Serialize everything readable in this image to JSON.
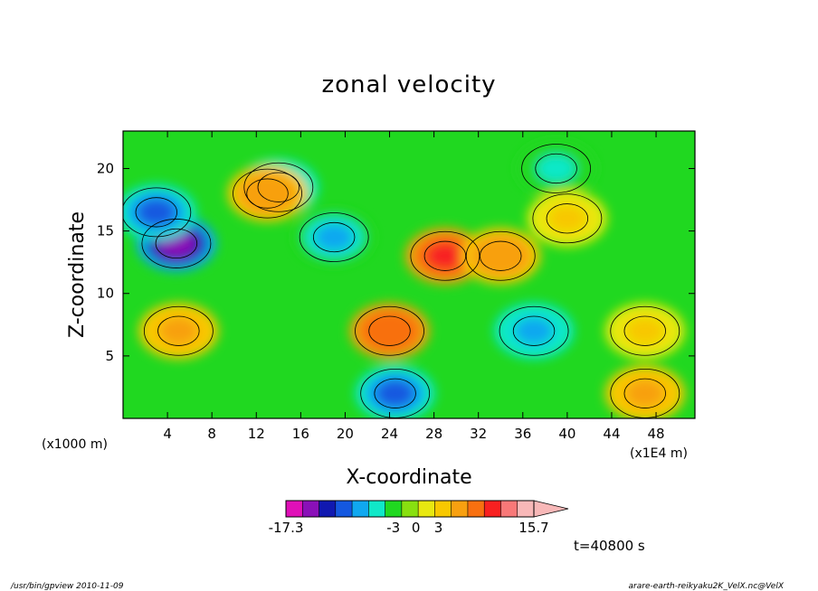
{
  "chart_data": {
    "type": "heatmap",
    "title": "zonal velocity",
    "xlabel": "X-coordinate",
    "ylabel": "Z-coordinate",
    "x_unit_left": "(x1000 m)",
    "x_unit_right": "(x1E4 m)",
    "xlim": [
      0,
      51.5
    ],
    "ylim": [
      0,
      23
    ],
    "x_ticks": [
      "4",
      "8",
      "12",
      "16",
      "20",
      "24",
      "28",
      "32",
      "36",
      "40",
      "44",
      "48"
    ],
    "y_ticks": [
      "5",
      "10",
      "15",
      "20"
    ],
    "colorbar": {
      "tick_labels": [
        "-17.3",
        "-3",
        "0",
        "3",
        "15.7"
      ],
      "tick_values": [
        -17.3,
        -3,
        0,
        3,
        15.7
      ],
      "range": [
        -17.3,
        15.7
      ],
      "colors": [
        "#e010b8",
        "#8a10b8",
        "#1018b0",
        "#1458e0",
        "#10a8f0",
        "#10e8c8",
        "#20d820",
        "#88e010",
        "#e8e810",
        "#f8c800",
        "#f8a010",
        "#f87010",
        "#f82020",
        "#f87878",
        "#f8b8b8"
      ]
    },
    "features": [
      {
        "x": 4.8,
        "z": 14.0,
        "value": -14
      },
      {
        "x": 3.0,
        "z": 16.5,
        "value": -9
      },
      {
        "x": 14.0,
        "z": 18.5,
        "value": -8
      },
      {
        "x": 19.0,
        "z": 14.5,
        "value": -7
      },
      {
        "x": 24.5,
        "z": 2.0,
        "value": -9
      },
      {
        "x": 37.0,
        "z": 7.0,
        "value": -8
      },
      {
        "x": 39.0,
        "z": 20.0,
        "value": -5
      },
      {
        "x": 24.0,
        "z": 7.0,
        "value": 9
      },
      {
        "x": 29.0,
        "z": 13.0,
        "value": 11
      },
      {
        "x": 34.0,
        "z": 13.0,
        "value": 6
      },
      {
        "x": 5.0,
        "z": 7.0,
        "value": 5
      },
      {
        "x": 13.0,
        "z": 18.0,
        "value": 6
      },
      {
        "x": 47.0,
        "z": 7.0,
        "value": 3
      },
      {
        "x": 47.0,
        "z": 2.0,
        "value": 5
      },
      {
        "x": 40.0,
        "z": 16.0,
        "value": 3
      }
    ]
  },
  "time_label": "t=40800 s",
  "footer": {
    "left": "/usr/bin/gpview   2010-11-09",
    "right": "arare-earth-reikyaku2K_VelX.nc@VelX"
  }
}
